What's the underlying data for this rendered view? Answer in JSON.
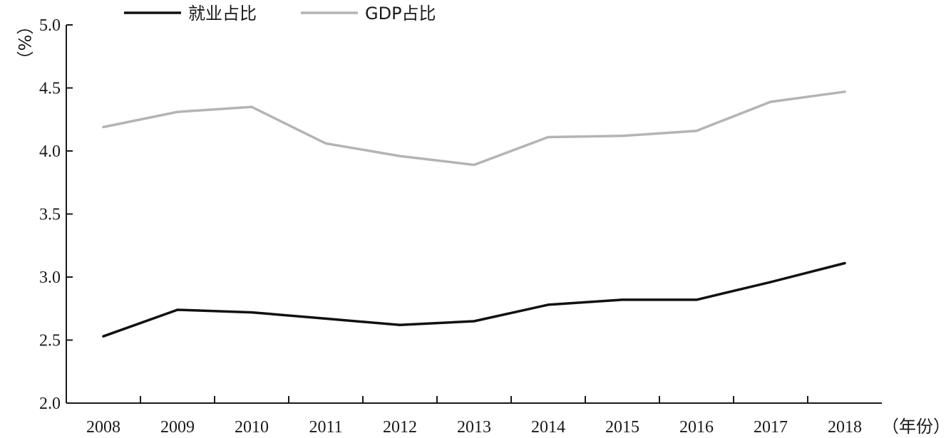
{
  "chart_data": {
    "type": "line",
    "categories": [
      "2008",
      "2009",
      "2010",
      "2011",
      "2012",
      "2013",
      "2014",
      "2015",
      "2016",
      "2017",
      "2018"
    ],
    "series": [
      {
        "name": "就业占比",
        "color": "#111111",
        "values": [
          2.53,
          2.74,
          2.72,
          2.67,
          2.62,
          2.65,
          2.78,
          2.82,
          2.82,
          2.96,
          3.11
        ]
      },
      {
        "name": "GDP占比",
        "color": "#b4b4b4",
        "values": [
          4.19,
          4.31,
          4.35,
          4.06,
          3.96,
          3.89,
          4.11,
          4.12,
          4.16,
          4.39,
          4.47
        ]
      }
    ],
    "ylim": [
      2.0,
      5.0
    ],
    "yticks": [
      "2.0",
      "2.5",
      "3.0",
      "3.5",
      "4.0",
      "4.5",
      "5.0"
    ],
    "ylabel": "（%）",
    "xlabel": "（年份）",
    "grid": false,
    "legend_position": "top"
  }
}
